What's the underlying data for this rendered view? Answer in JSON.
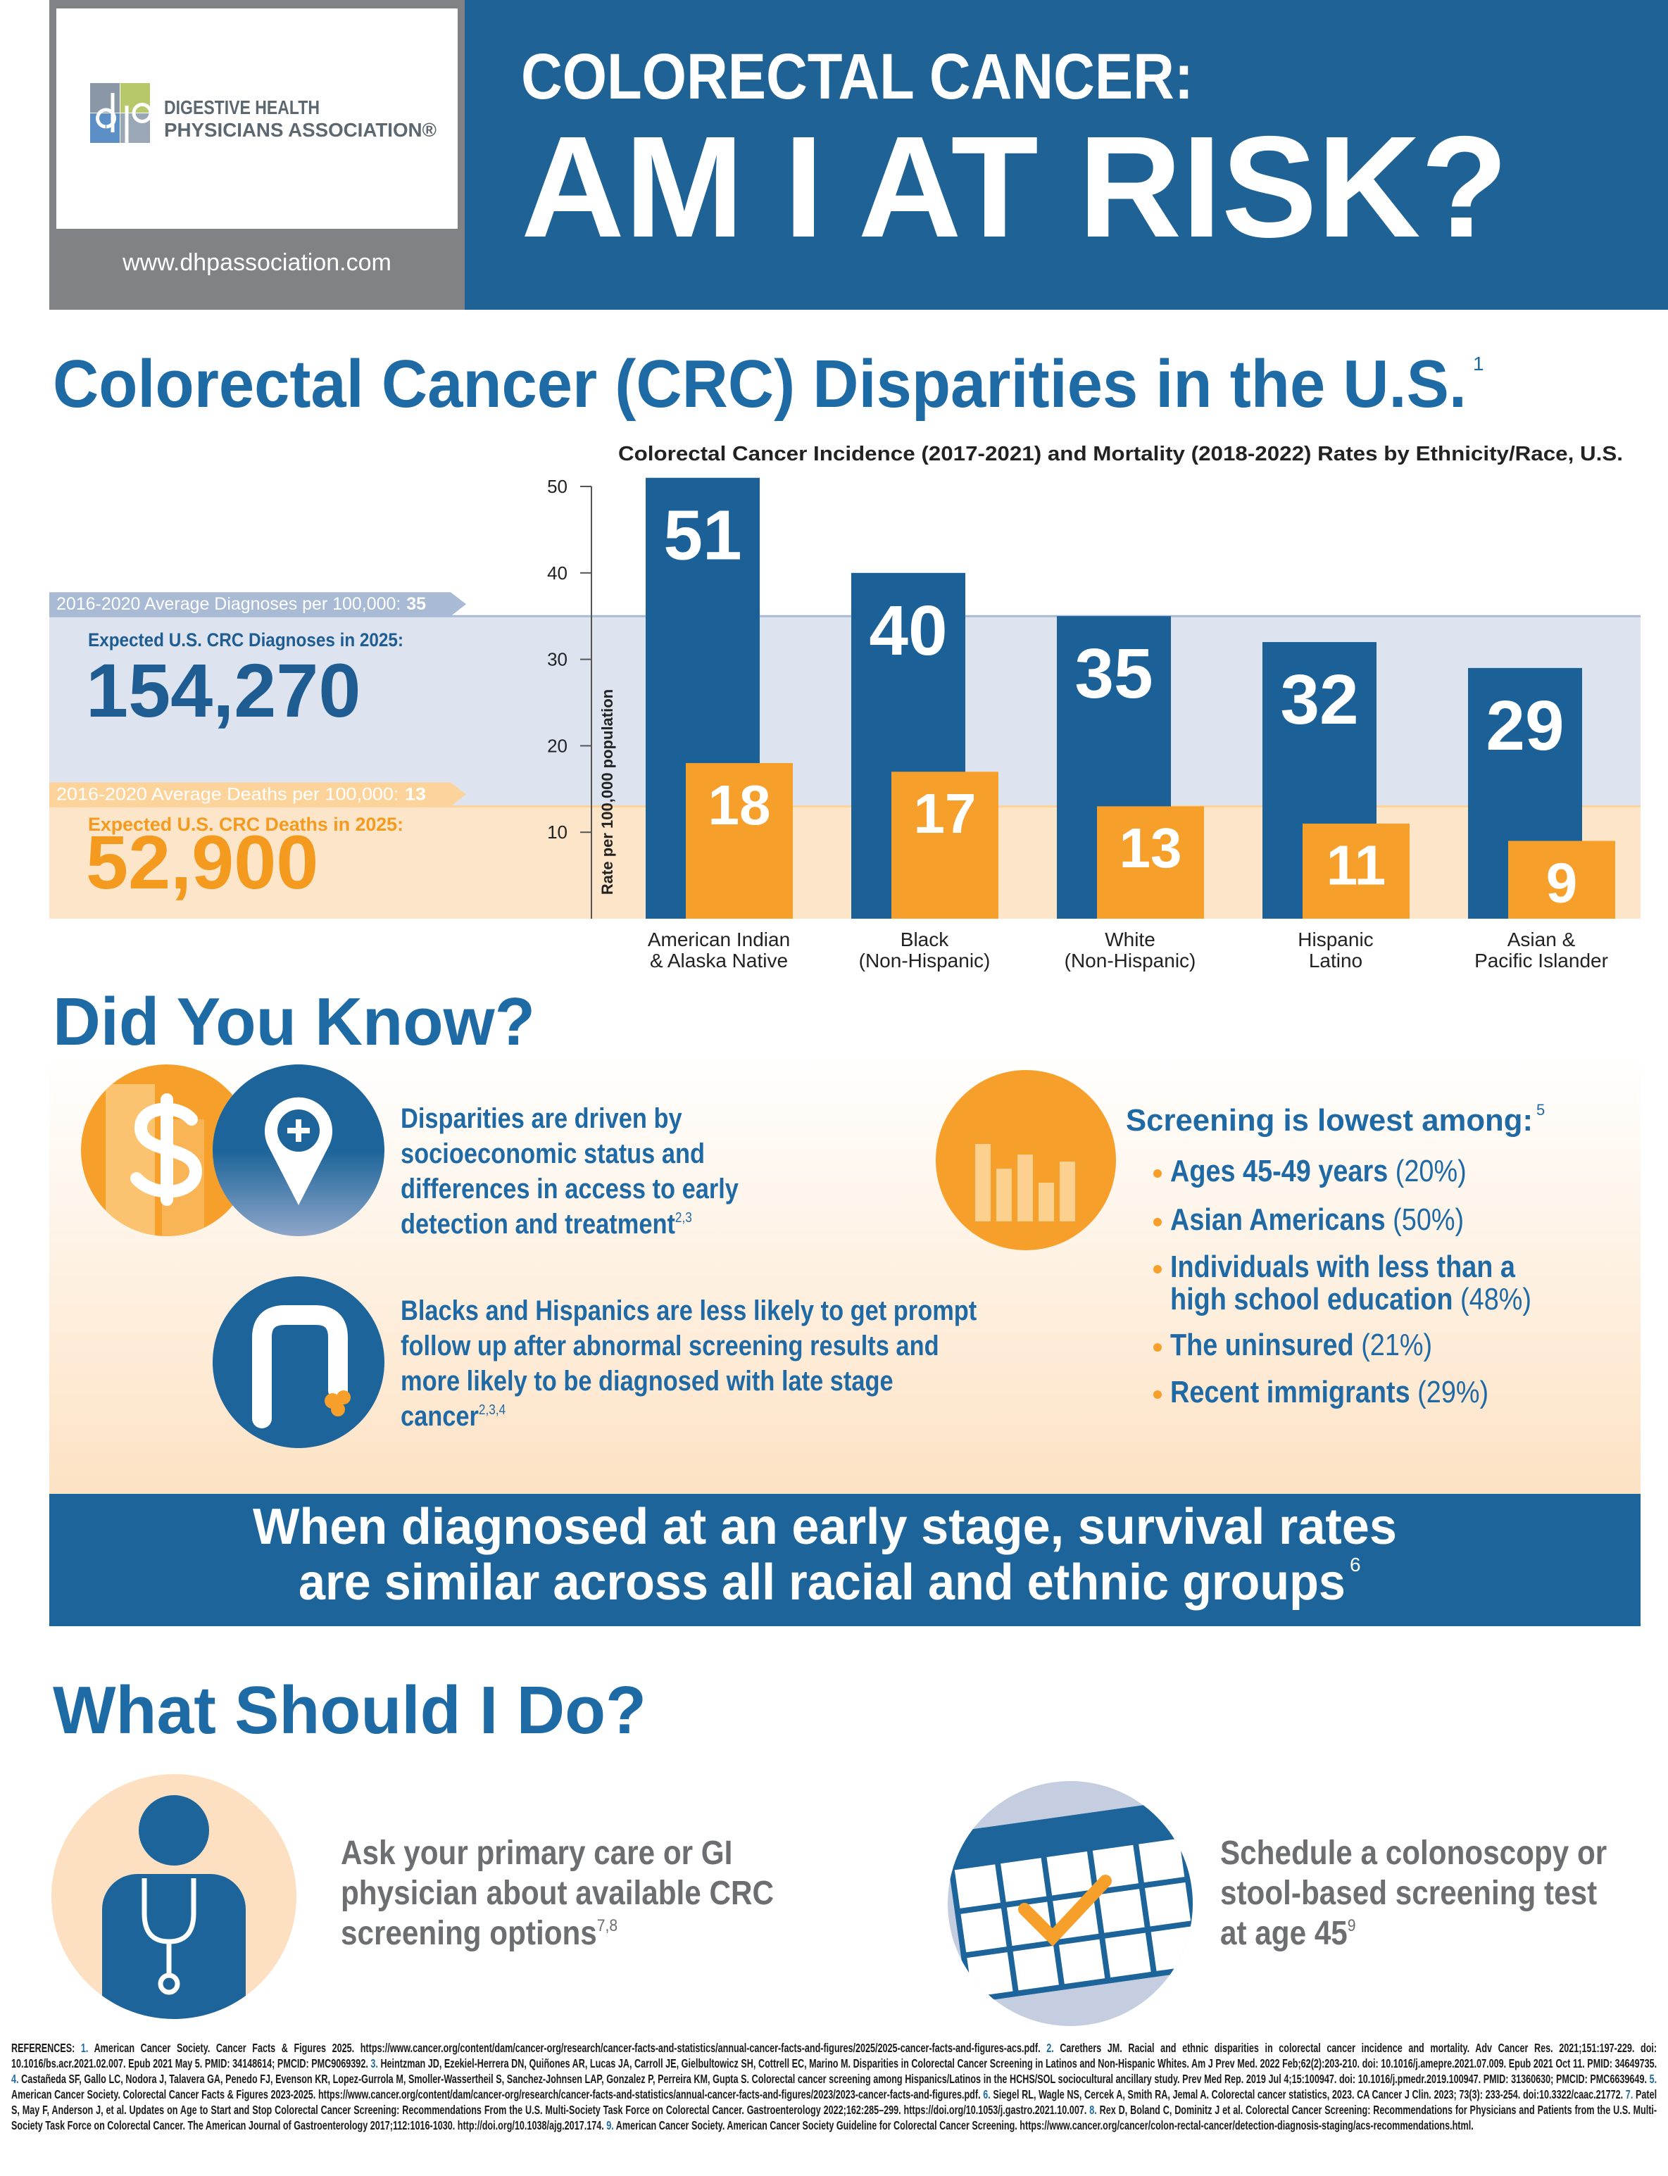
{
  "header": {
    "org_line1": "DIGESTIVE HEALTH",
    "org_line2": "PHYSICIANS ASSOCIATION®",
    "url": "www.dhpassociation.com",
    "title_line1": "COLORECTAL CANCER:",
    "title_line2": "AM I AT RISK?"
  },
  "disparities": {
    "title": "Colorectal Cancer (CRC) Disparities in the U.S.",
    "ref": "1"
  },
  "chart_data": {
    "type": "bar",
    "title": "Colorectal Cancer Incidence (2017-2021) and Mortality (2018-2022) Rates by Ethnicity/Race, U.S.",
    "y_label": "Rate per 100,000 population",
    "categories": [
      "American Indian\n& Alaska Native",
      "Black\n(Non-Hispanic)",
      "White\n(Non-Hispanic)",
      "Hispanic\nLatino",
      "Asian &\nPacific Islander"
    ],
    "series": [
      {
        "color": "#1b6198",
        "values": [
          51,
          40,
          35,
          32,
          29
        ]
      },
      {
        "color": "#f6a02b",
        "values": [
          18,
          17,
          13,
          11,
          9
        ]
      }
    ],
    "ylim": [
      0,
      50
    ],
    "yticks": [
      10,
      20,
      30,
      40,
      50
    ],
    "reference_lines": [
      {
        "label": "2016-2020 Average Diagnoses per 100,000:",
        "value": 35,
        "color": "#a9bad5",
        "band_color": "#dde4ef"
      },
      {
        "label": "2016-2020 Average Deaths per 100,000:",
        "value": 13,
        "color": "#fcd39b",
        "band_color": "#fde5c9"
      }
    ],
    "annotations": [
      {
        "label": "Expected U.S. CRC Diagnoses in 2025:",
        "figure": "154,270",
        "color": "#1e5c92"
      },
      {
        "label": "Expected U.S. CRC Deaths in 2025:",
        "figure": "52,900",
        "color": "#f39a1f"
      }
    ]
  },
  "did_you_know": {
    "title": "Did You Know?",
    "facts": [
      {
        "text": "Disparities are driven by socioeconomic status and differences in access to early detection and treatment",
        "ref": "2,3"
      },
      {
        "text": "Blacks and Hispanics are less likely to get prompt follow up after abnormal screening results and more likely to be diagnosed with late stage cancer",
        "ref": "2,3,4"
      }
    ],
    "screening": {
      "heading": "Screening is lowest among:",
      "ref": "5",
      "items": [
        {
          "text": "Ages 45-49 years",
          "pct": "(20%)"
        },
        {
          "text": "Asian Americans",
          "pct": "(50%)"
        },
        {
          "text": "Individuals with less than a high school education",
          "pct": "(48%)"
        },
        {
          "text": "The uninsured",
          "pct": "(21%)"
        },
        {
          "text": "Recent immigrants",
          "pct": "(29%)"
        }
      ]
    }
  },
  "banner": {
    "lines": [
      "When diagnosed at an early stage, survival rates",
      "are similar across all racial and ethnic groups"
    ],
    "ref": "6"
  },
  "what_should_i_do": {
    "title": "What Should I Do?",
    "actions": [
      {
        "text": "Ask your primary care or GI physician about available CRC screening options",
        "ref": "7,8"
      },
      {
        "text": "Schedule a colonoscopy or stool-based screening test at age 45",
        "ref": "9"
      }
    ]
  },
  "references": {
    "label": "REFERENCES:",
    "items": [
      {
        "num": "1.",
        "text": "American Cancer Society. Cancer Facts & Figures 2025. https://www.cancer.org/content/dam/cancer-org/research/cancer-facts-and-statistics/annual-cancer-facts-and-figures/2025/2025-cancer-facts-and-figures-acs.pdf."
      },
      {
        "num": "2.",
        "text": "Carethers JM. Racial and ethnic disparities in colorectal cancer incidence and mortality. Adv Cancer Res. 2021;151:197-229. doi: 10.1016/bs.acr.2021.02.007. Epub 2021 May 5. PMID: 34148614; PMCID: PMC9069392."
      },
      {
        "num": "3.",
        "text": "Heintzman JD, Ezekiel-Herrera DN, Quiñones AR, Lucas JA, Carroll JE, Gielbultowicz SH, Cottrell EC, Marino M. Disparities in Colorectal Cancer Screening in Latinos and Non-Hispanic Whites. Am J Prev Med. 2022 Feb;62(2):203-210. doi: 10.1016/j.amepre.2021.07.009. Epub 2021 Oct 11. PMID: 34649735."
      },
      {
        "num": "4.",
        "text": "Castañeda SF, Gallo LC, Nodora J, Talavera GA, Penedo FJ, Evenson KR, Lopez-Gurrola M, Smoller-Wassertheil S, Sanchez-Johnsen LAP, Gonzalez P, Perreira KM, Gupta S. Colorectal cancer screening among Hispanics/Latinos in the HCHS/SOL sociocultural ancillary study. Prev Med Rep. 2019 Jul 4;15:100947. doi: 10.1016/j.pmedr.2019.100947. PMID: 31360630; PMCID: PMC6639649."
      },
      {
        "num": "5.",
        "text": "American Cancer Society. Colorectal Cancer Facts & Figures 2023-2025. https://www.cancer.org/content/dam/cancer-org/research/cancer-facts-and-statistics/annual-cancer-facts-and-figures/2023/2023-cancer-facts-and-figures.pdf."
      },
      {
        "num": "6.",
        "text": "Siegel RL, Wagle NS, Cercek A, Smith RA, Jemal A. Colorectal cancer statistics, 2023. CA Cancer J Clin. 2023; 73(3): 233-254. doi:10.3322/caac.21772."
      },
      {
        "num": "7.",
        "text": "Patel S, May F, Anderson J, et al. Updates on Age to Start and Stop Colorectal Cancer Screening: Recommendations From the U.S. Multi-Society Task Force on Colorectal Cancer. Gastroenterology 2022;162:285–299. https://doi.org/10.1053/j.gastro.2021.10.007."
      },
      {
        "num": "8.",
        "text": "Rex D, Boland C, Dominitz J et al. Colorectal Cancer Screening: Recommendations for Physicians and Patients from the U.S. Multi-Society Task Force on Colorectal Cancer. The American Journal of Gastroenterology 2017;112:1016-1030. http://doi.org/10.1038/ajg.2017.174."
      },
      {
        "num": "9.",
        "text": "American Cancer Society. American Cancer Society Guideline for Colorectal Cancer Screening. https://www.cancer.org/cancer/colon-rectal-cancer/detection-diagnosis-staging/acs-recommendations.html."
      }
    ]
  }
}
